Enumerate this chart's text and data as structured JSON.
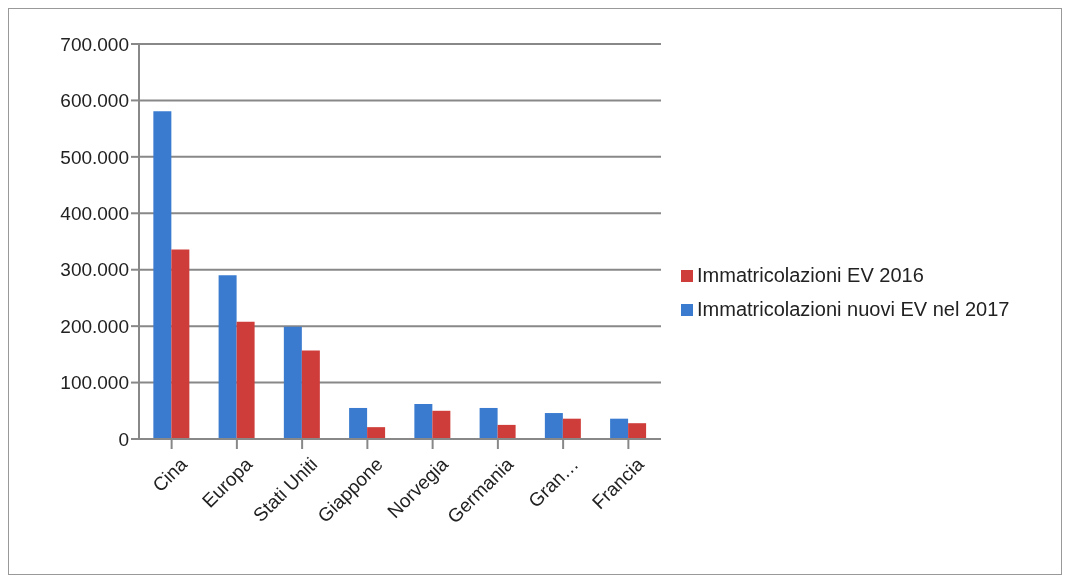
{
  "chart_data": {
    "type": "bar",
    "categories": [
      "Cina",
      "Europa",
      "Stati Uniti",
      "Giappone",
      "Norvegia",
      "Germania",
      "Gran…",
      "Francia"
    ],
    "series": [
      {
        "name": "Immatricolazioni nuovi EV nel 2017",
        "color": "#3a7bcf",
        "values": [
          581000,
          290000,
          199000,
          55000,
          62000,
          55000,
          46000,
          36000
        ]
      },
      {
        "name": "Immatricolazioni EV 2016",
        "color": "#cf3d3a",
        "values": [
          336000,
          208000,
          157000,
          21000,
          50000,
          25000,
          36000,
          28000
        ]
      }
    ],
    "ylim": [
      0,
      700000
    ],
    "yticks": [
      {
        "value": 0,
        "label": "0"
      },
      {
        "value": 100000,
        "label": "100.000"
      },
      {
        "value": 200000,
        "label": "200.000"
      },
      {
        "value": 300000,
        "label": "300.000"
      },
      {
        "value": 400000,
        "label": "400.000"
      },
      {
        "value": 500000,
        "label": "500.000"
      },
      {
        "value": 600000,
        "label": "600.000"
      },
      {
        "value": 700000,
        "label": "700.000"
      }
    ],
    "grid": "y",
    "legend": "right"
  }
}
